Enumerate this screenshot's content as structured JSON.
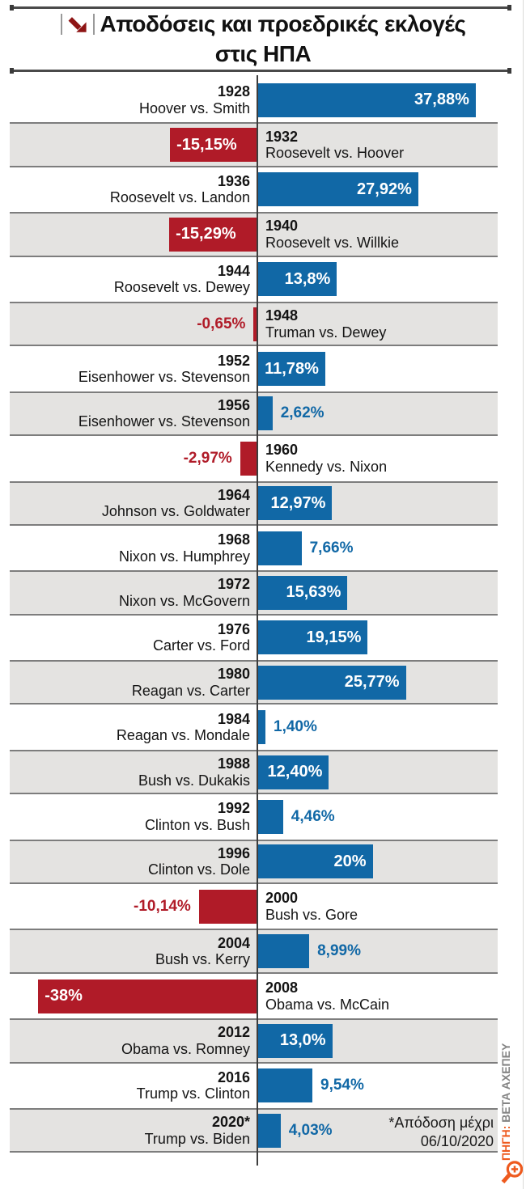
{
  "title": {
    "line1": "Αποδόσεις και προεδρικές εκλογές",
    "line2": "στις ΗΠΑ"
  },
  "chart_data": {
    "type": "bar",
    "orientation": "horizontal",
    "title": "Αποδόσεις και προεδρικές εκλογές στις ΗΠΑ",
    "value_unit": "%",
    "xlim": [
      -38,
      38
    ],
    "positive_color": "#1168a6",
    "negative_color": "#b01b28",
    "rows": [
      {
        "year": "1928",
        "matchup": "Hoover vs. Smith",
        "value": 37.88,
        "label": "37,88%"
      },
      {
        "year": "1932",
        "matchup": "Roosevelt vs. Hoover",
        "value": -15.15,
        "label": "-15,15%"
      },
      {
        "year": "1936",
        "matchup": "Roosevelt vs. Landon",
        "value": 27.92,
        "label": "27,92%"
      },
      {
        "year": "1940",
        "matchup": "Roosevelt vs. Willkie",
        "value": -15.29,
        "label": "-15,29%"
      },
      {
        "year": "1944",
        "matchup": "Roosevelt vs. Dewey",
        "value": 13.8,
        "label": "13,8%"
      },
      {
        "year": "1948",
        "matchup": "Truman vs. Dewey",
        "value": -0.65,
        "label": "-0,65%"
      },
      {
        "year": "1952",
        "matchup": "Eisenhower vs. Stevenson",
        "value": 11.78,
        "label": "11,78%"
      },
      {
        "year": "1956",
        "matchup": "Eisenhower vs. Stevenson",
        "value": 2.62,
        "label": "2,62%"
      },
      {
        "year": "1960",
        "matchup": "Kennedy vs. Nixon",
        "value": -2.97,
        "label": "-2,97%"
      },
      {
        "year": "1964",
        "matchup": "Johnson vs. Goldwater",
        "value": 12.97,
        "label": "12,97%"
      },
      {
        "year": "1968",
        "matchup": "Nixon vs. Humphrey",
        "value": 7.66,
        "label": "7,66%"
      },
      {
        "year": "1972",
        "matchup": "Nixon vs. McGovern",
        "value": 15.63,
        "label": "15,63%"
      },
      {
        "year": "1976",
        "matchup": "Carter vs. Ford",
        "value": 19.15,
        "label": "19,15%"
      },
      {
        "year": "1980",
        "matchup": "Reagan vs. Carter",
        "value": 25.77,
        "label": "25,77%"
      },
      {
        "year": "1984",
        "matchup": "Reagan vs. Mondale",
        "value": 1.4,
        "label": "1,40%"
      },
      {
        "year": "1988",
        "matchup": "Bush vs. Dukakis",
        "value": 12.4,
        "label": "12,40%"
      },
      {
        "year": "1992",
        "matchup": "Clinton vs. Bush",
        "value": 4.46,
        "label": "4,46%"
      },
      {
        "year": "1996",
        "matchup": "Clinton vs. Dole",
        "value": 20,
        "label": "20%"
      },
      {
        "year": "2000",
        "matchup": "Bush vs. Gore",
        "value": -10.14,
        "label": "-10,14%"
      },
      {
        "year": "2004",
        "matchup": "Bush vs. Kerry",
        "value": 8.99,
        "label": "8,99%"
      },
      {
        "year": "2008",
        "matchup": "Obama vs. McCain",
        "value": -38,
        "label": "-38%"
      },
      {
        "year": "2012",
        "matchup": "Obama vs. Romney",
        "value": 13.0,
        "label": "13,0%"
      },
      {
        "year": "2016",
        "matchup": "Trump vs. Clinton",
        "value": 9.54,
        "label": "9,54%"
      },
      {
        "year": "2020*",
        "matchup": "Trump vs. Biden",
        "value": 4.03,
        "label": "4,03%"
      }
    ]
  },
  "footnote": {
    "line1": "*Απόδοση μέχρι",
    "line2": "06/10/2020"
  },
  "source": {
    "prefix": "ΠΗΓΗ:",
    "name": "BETA ΑΧΕΠΕΥ"
  },
  "icons": {
    "title_icon": "down-right-arrow-icon",
    "corner_icon": "zoom-in-magnifier-icon"
  },
  "colors": {
    "positive": "#1168a6",
    "negative": "#b01b28",
    "row_alt": "#e4e3e1",
    "accent_orange": "#ee5a1e"
  }
}
